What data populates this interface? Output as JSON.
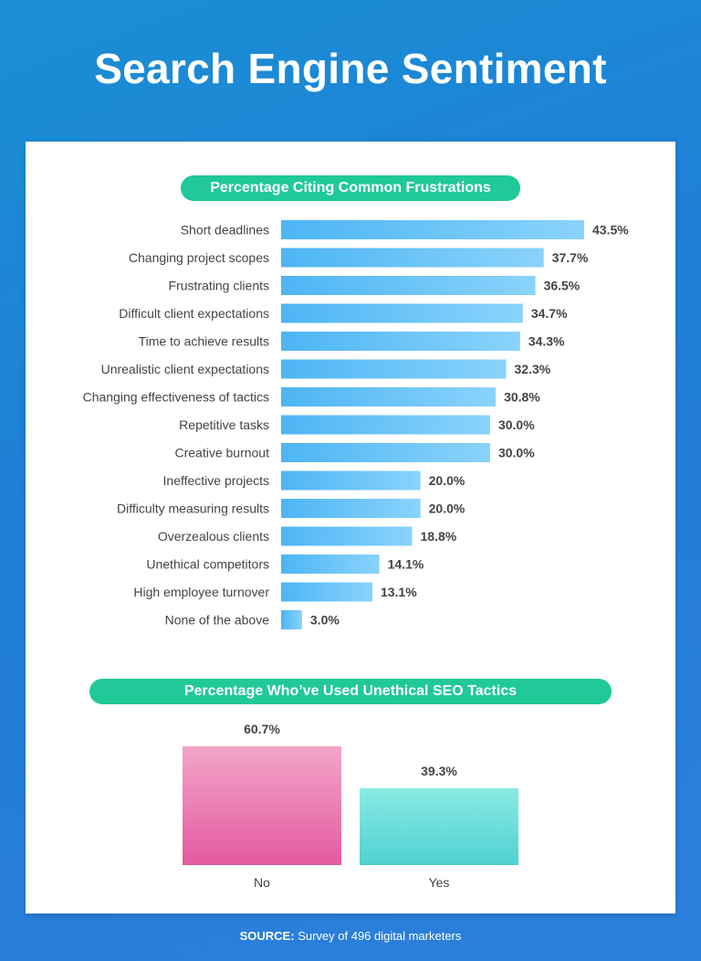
{
  "title": "Search Engine Sentiment",
  "source_label": "SOURCE:",
  "source_text": "Survey of 496 digital marketers",
  "colors": {
    "pill": "#20c997",
    "hbar_start": "#4db5f5",
    "hbar_end": "#8ad3fb",
    "no_start": "#f2a5c9",
    "no_end": "#e45aa0",
    "yes_start": "#8aeae4",
    "yes_end": "#4fd1d2"
  },
  "chart_data": [
    {
      "type": "bar",
      "orientation": "horizontal",
      "title": "Percentage Citing Common Frustrations",
      "categories": [
        "Short deadlines",
        "Changing project scopes",
        "Frustrating clients",
        "Difficult client expectations",
        "Time to achieve results",
        "Unrealistic client expectations",
        "Changing effectiveness of tactics",
        "Repetitive tasks",
        "Creative burnout",
        "Ineffective projects",
        "Difficulty measuring results",
        "Overzealous clients",
        "Unethical competitors",
        "High employee turnover",
        "None of the above"
      ],
      "values": [
        43.5,
        37.7,
        36.5,
        34.7,
        34.3,
        32.3,
        30.8,
        30.0,
        30.0,
        20.0,
        20.0,
        18.8,
        14.1,
        13.1,
        3.0
      ],
      "labels": [
        "43.5%",
        "37.7%",
        "36.5%",
        "34.7%",
        "34.3%",
        "32.3%",
        "30.8%",
        "30.0%",
        "30.0%",
        "20.0%",
        "20.0%",
        "18.8%",
        "14.1%",
        "13.1%",
        "3.0%"
      ]
    },
    {
      "type": "bar",
      "orientation": "vertical",
      "title": "Percentage Who’ve Used Unethical SEO Tactics",
      "categories": [
        "No",
        "Yes"
      ],
      "values": [
        60.7,
        39.3
      ],
      "labels": [
        "60.7%",
        "39.3%"
      ]
    }
  ]
}
